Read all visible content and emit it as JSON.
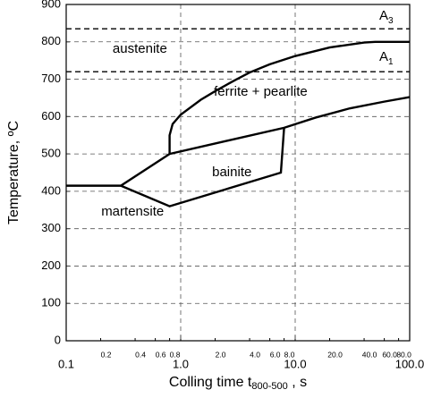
{
  "chart_data": {
    "type": "line",
    "xlabel": {
      "text": "Colling time t",
      "sub": "800-500",
      "tail": " , s"
    },
    "ylabel": "Temperature, ºC",
    "xscale": "log",
    "xlim": [
      0.1,
      100
    ],
    "ylim": [
      0,
      900
    ],
    "xticks": [
      0.1,
      {
        "value": 1,
        "label": "1.0"
      },
      {
        "value": 10,
        "label": "10.0"
      },
      {
        "value": 100,
        "label": "100.0"
      }
    ],
    "xminorticks": [
      0.2,
      0.4,
      0.6,
      0.8,
      {
        "value": 2,
        "label": "2.0"
      },
      {
        "value": 4,
        "label": "4.0"
      },
      {
        "value": 6,
        "label": "6.0"
      },
      {
        "value": 8,
        "label": "8.0"
      },
      {
        "value": 20,
        "label": "20.0"
      },
      {
        "value": 40,
        "label": "40.0"
      },
      {
        "value": 60,
        "label": "60.0"
      },
      {
        "value": 80,
        "label": "80.0"
      }
    ],
    "yticks": [
      0,
      100,
      200,
      300,
      400,
      500,
      600,
      700,
      800,
      900
    ],
    "grid": true,
    "series": [
      {
        "name": {
          "text": "A",
          "sub": "3"
        },
        "color": "#000000",
        "dashed": true,
        "x": [
          0.1,
          100
        ],
        "values": [
          835,
          835
        ]
      },
      {
        "name": {
          "text": "A",
          "sub": "1"
        },
        "color": "#000000",
        "dashed": true,
        "x": [
          0.1,
          100
        ],
        "values": [
          720,
          720
        ]
      },
      {
        "color": "#000000",
        "dashed": false,
        "x": [
          0.8,
          0.8,
          0.85,
          1,
          1.5,
          2,
          3,
          4,
          6,
          10,
          20,
          40,
          50,
          100
        ],
        "values": [
          500,
          550,
          580,
          605,
          645,
          668,
          698,
          718,
          740,
          762,
          785,
          798,
          800,
          800
        ]
      },
      {
        "color": "#000000",
        "dashed": false,
        "x": [
          0.1,
          0.3,
          0.8,
          8,
          15,
          30,
          60,
          100
        ],
        "values": [
          415,
          415,
          500,
          570,
          597,
          622,
          640,
          652
        ]
      },
      {
        "color": "#000000",
        "dashed": false,
        "x": [
          0.3,
          0.8,
          7.5,
          8
        ],
        "values": [
          415,
          360,
          450,
          570
        ]
      }
    ],
    "annotations": [
      "austenite",
      "ferrite + pearlite",
      "bainite",
      "martensite"
    ]
  }
}
